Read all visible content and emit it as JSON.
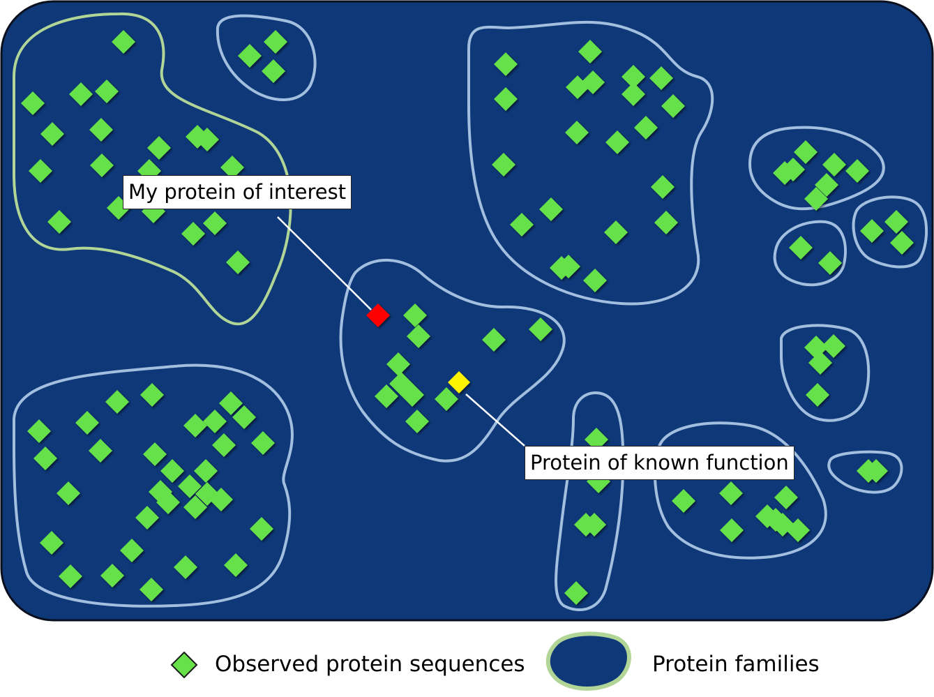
{
  "colors": {
    "background_panel": "#0e3878",
    "panel_border": "#0a0f1e",
    "sequence_marker": "#66e14a",
    "family_outline": "#a3bfdf",
    "highlight_family_outline": "#b1d596",
    "protein_of_interest": "#ff0000",
    "known_function": "#fdf200",
    "callout_line": "#ffffff"
  },
  "callouts": {
    "protein_of_interest": "My protein of interest",
    "known_function": "Protein of known function"
  },
  "legend": {
    "sequences_label": "Observed protein sequences",
    "families_label": "Protein families",
    "sequence_icon": "green-diamond-icon",
    "family_icon": "blob-icon"
  }
}
